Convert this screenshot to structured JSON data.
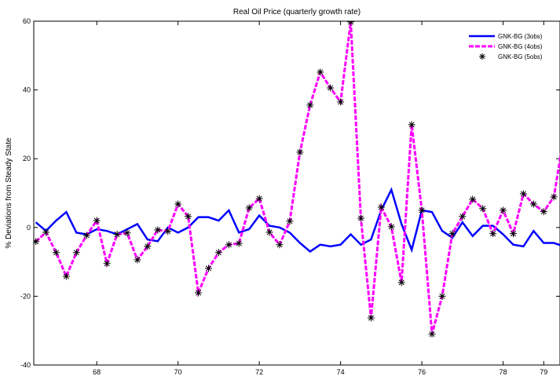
{
  "chart_data": {
    "type": "line",
    "title": "Real Oil Price (quarterly  growth rate)",
    "y_label": "% Deviations from Steady State",
    "x": [
      66.5,
      66.75,
      67,
      67.25,
      67.5,
      67.75,
      68,
      68.25,
      68.5,
      68.75,
      69,
      69.25,
      69.5,
      69.75,
      70,
      70.25,
      70.5,
      70.75,
      71,
      71.25,
      71.5,
      71.75,
      72,
      72.25,
      72.5,
      72.75,
      73,
      73.25,
      73.5,
      73.75,
      74,
      74.25,
      74.5,
      74.75,
      75,
      75.25,
      75.5,
      75.75,
      76,
      76.25,
      76.5,
      76.75,
      77,
      77.25,
      77.5,
      77.75,
      78,
      78.25,
      78.5,
      78.75,
      79,
      79.25,
      79.5
    ],
    "series": [
      {
        "name": "GNK-BG (3obs)",
        "color": "#0000ff",
        "line": "solid",
        "values": [
          1.5,
          -1,
          2,
          4.5,
          -1.5,
          -2,
          -0.5,
          -1,
          -2,
          -0.5,
          1,
          -3.5,
          -4,
          0,
          -1.5,
          0,
          3,
          3,
          2,
          5,
          -1.5,
          -0.5,
          3.5,
          0.5,
          0,
          -1.5,
          -4.5,
          -7,
          -5,
          -5.5,
          -5,
          -2,
          -5,
          -3.5,
          5,
          11,
          1,
          -6.5,
          5,
          4.5,
          -1,
          -3,
          1.5,
          -2.5,
          0.5,
          0.5,
          -2,
          -5,
          -5.5,
          -1,
          -4.5,
          -4.5,
          -5.5
        ]
      },
      {
        "name": "GNK-BG (4obs)",
        "color": "#ff00ff",
        "line": "dashed",
        "values": [
          -4.1,
          -1.4,
          -7.3,
          -14.2,
          -7.3,
          -2.3,
          2,
          -10.5,
          -2,
          -1.6,
          -9.4,
          -5.5,
          -0.7,
          -1.1,
          6.8,
          3.2,
          -19,
          -11.9,
          -7.3,
          -5,
          -4.6,
          5.7,
          8.4,
          -1.4,
          -5,
          1.8,
          21.9,
          35.6,
          45.2,
          40.6,
          36.5,
          59.8,
          2.7,
          -26.3,
          5.9,
          0.2,
          -16,
          29.9,
          5,
          -31,
          -20,
          -1.8,
          3.2,
          8.2,
          5.5,
          -1.8,
          5,
          -1.8,
          9.8,
          6.8,
          4.6,
          8.9,
          27
        ]
      },
      {
        "name": "GNK-BG (5obs)",
        "color": "#000000",
        "marker": "star",
        "values": [
          -4.1,
          -1.4,
          -7.3,
          -14.2,
          -7.3,
          -2.3,
          2,
          -10.5,
          -2,
          -1.6,
          -9.4,
          -5.5,
          -0.7,
          -1.1,
          6.8,
          3.2,
          -19,
          -11.9,
          -7.3,
          -5,
          -4.6,
          5.7,
          8.4,
          -1.4,
          -5,
          1.8,
          21.9,
          35.6,
          45.2,
          40.6,
          36.5,
          59.8,
          2.7,
          -26.3,
          5.9,
          0.2,
          -16,
          29.9,
          5,
          -31,
          -20,
          -1.8,
          3.2,
          8.2,
          5.5,
          -1.8,
          5,
          -1.8,
          9.8,
          6.8,
          4.6,
          8.9,
          null
        ]
      }
    ],
    "xlim": [
      66.45,
      79.4
    ],
    "ylim": [
      -40,
      60
    ],
    "xticks": [
      68,
      70,
      72,
      74,
      76,
      78,
      79
    ],
    "yticks": [
      -40,
      -20,
      0,
      20,
      40,
      60
    ],
    "legend": "top-right"
  }
}
